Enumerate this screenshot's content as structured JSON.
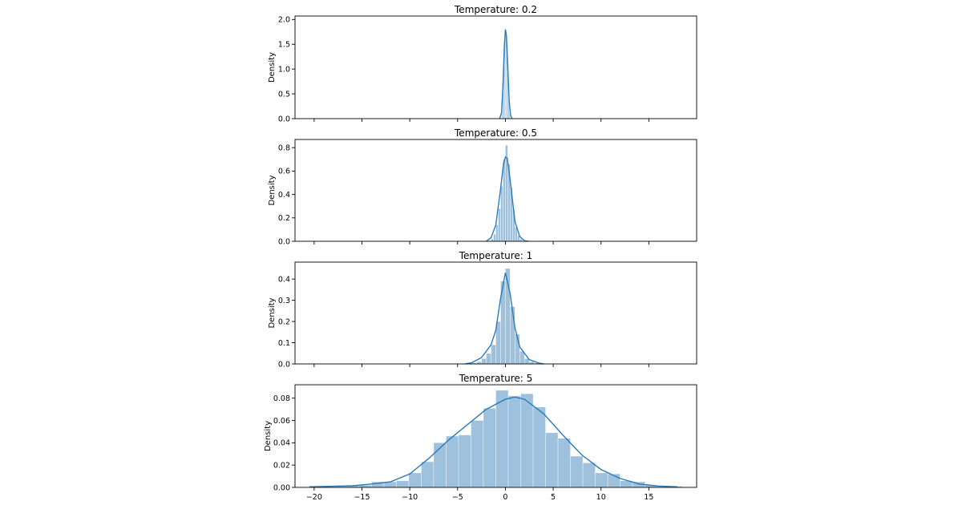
{
  "figure": {
    "color_bars": "#9ec1de",
    "color_line": "#2b7bb9"
  },
  "chart_data": [
    {
      "type": "bar",
      "overlay": "kde-line",
      "title": "Temperature: 0.2",
      "xlabel": "",
      "ylabel": "Density",
      "xlim": [
        -22,
        20
      ],
      "ylim": [
        0,
        2.07
      ],
      "yticks": [
        0.0,
        0.5,
        1.0,
        1.5,
        2.0
      ],
      "ytick_labels": [
        "0.0",
        "0.5",
        "1.0",
        "1.5",
        "2.0"
      ],
      "xticks": [
        -20,
        -15,
        -10,
        -5,
        0,
        5,
        10,
        15
      ],
      "show_xtick_labels": false,
      "grid": false,
      "bins": [
        [
          -0.4,
          -0.3,
          0.15
        ],
        [
          -0.3,
          -0.2,
          0.5
        ],
        [
          -0.2,
          -0.1,
          1.05
        ],
        [
          -0.1,
          0.0,
          1.6
        ],
        [
          0.0,
          0.1,
          1.75
        ],
        [
          0.1,
          0.2,
          1.45
        ],
        [
          0.2,
          0.3,
          0.9
        ],
        [
          0.3,
          0.4,
          0.4
        ],
        [
          0.4,
          0.5,
          0.12
        ]
      ],
      "kde": [
        [
          -0.6,
          0.0
        ],
        [
          -0.4,
          0.12
        ],
        [
          -0.25,
          0.7
        ],
        [
          -0.1,
          1.5
        ],
        [
          0.0,
          1.8
        ],
        [
          0.1,
          1.7
        ],
        [
          0.25,
          1.05
        ],
        [
          0.4,
          0.35
        ],
        [
          0.55,
          0.06
        ],
        [
          0.7,
          0.0
        ]
      ]
    },
    {
      "type": "bar",
      "overlay": "kde-line",
      "title": "Temperature: 0.5",
      "xlabel": "",
      "ylabel": "Density",
      "xlim": [
        -22,
        20
      ],
      "ylim": [
        0,
        0.87
      ],
      "yticks": [
        0.0,
        0.2,
        0.4,
        0.6,
        0.8
      ],
      "ytick_labels": [
        "0.0",
        "0.2",
        "0.4",
        "0.6",
        "0.8"
      ],
      "xticks": [
        -20,
        -15,
        -10,
        -5,
        0,
        5,
        10,
        15
      ],
      "show_xtick_labels": false,
      "grid": false,
      "bins": [
        [
          -1.5,
          -1.25,
          0.02
        ],
        [
          -1.25,
          -1.0,
          0.06
        ],
        [
          -1.0,
          -0.75,
          0.14
        ],
        [
          -0.75,
          -0.5,
          0.28
        ],
        [
          -0.5,
          -0.25,
          0.47
        ],
        [
          -0.25,
          0.0,
          0.7
        ],
        [
          0.0,
          0.25,
          0.82
        ],
        [
          0.25,
          0.5,
          0.66
        ],
        [
          0.5,
          0.75,
          0.46
        ],
        [
          0.75,
          1.0,
          0.27
        ],
        [
          1.0,
          1.25,
          0.12
        ],
        [
          1.25,
          1.5,
          0.05
        ],
        [
          1.5,
          1.75,
          0.02
        ]
      ],
      "kde": [
        [
          -2.0,
          0.0
        ],
        [
          -1.5,
          0.03
        ],
        [
          -1.0,
          0.14
        ],
        [
          -0.5,
          0.45
        ],
        [
          -0.2,
          0.66
        ],
        [
          0.0,
          0.72
        ],
        [
          0.2,
          0.71
        ],
        [
          0.5,
          0.52
        ],
        [
          1.0,
          0.17
        ],
        [
          1.5,
          0.04
        ],
        [
          2.0,
          0.005
        ],
        [
          2.4,
          0.0
        ]
      ]
    },
    {
      "type": "bar",
      "overlay": "kde-line",
      "title": "Temperature: 1",
      "xlabel": "",
      "ylabel": "Density",
      "xlim": [
        -22,
        20
      ],
      "ylim": [
        0,
        0.48
      ],
      "yticks": [
        0.0,
        0.1,
        0.2,
        0.3,
        0.4
      ],
      "ytick_labels": [
        "0.0",
        "0.1",
        "0.2",
        "0.3",
        "0.4"
      ],
      "xticks": [
        -20,
        -15,
        -10,
        -5,
        0,
        5,
        10,
        15
      ],
      "show_xtick_labels": false,
      "grid": false,
      "bins": [
        [
          -3.5,
          -3.0,
          0.005
        ],
        [
          -3.0,
          -2.5,
          0.01
        ],
        [
          -2.5,
          -2.0,
          0.025
        ],
        [
          -2.0,
          -1.5,
          0.05
        ],
        [
          -1.5,
          -1.0,
          0.09
        ],
        [
          -1.0,
          -0.5,
          0.2
        ],
        [
          -0.5,
          0.0,
          0.39
        ],
        [
          0.0,
          0.5,
          0.45
        ],
        [
          0.5,
          1.0,
          0.27
        ],
        [
          1.0,
          1.5,
          0.14
        ],
        [
          1.5,
          2.0,
          0.06
        ],
        [
          2.0,
          2.5,
          0.025
        ],
        [
          2.5,
          3.0,
          0.01
        ],
        [
          3.0,
          3.5,
          0.004
        ]
      ],
      "kde": [
        [
          -4.2,
          0.0
        ],
        [
          -3.5,
          0.006
        ],
        [
          -2.5,
          0.03
        ],
        [
          -1.5,
          0.09
        ],
        [
          -1.0,
          0.16
        ],
        [
          -0.5,
          0.31
        ],
        [
          0.0,
          0.43
        ],
        [
          0.5,
          0.33
        ],
        [
          1.0,
          0.17
        ],
        [
          1.5,
          0.08
        ],
        [
          2.5,
          0.02
        ],
        [
          3.5,
          0.004
        ],
        [
          4.0,
          0.0
        ]
      ]
    },
    {
      "type": "bar",
      "overlay": "kde-line",
      "title": "Temperature: 5",
      "xlabel": "",
      "ylabel": "Density",
      "xlim": [
        -22,
        20
      ],
      "ylim": [
        0,
        0.092
      ],
      "yticks": [
        0.0,
        0.02,
        0.04,
        0.06,
        0.08
      ],
      "ytick_labels": [
        "0.00",
        "0.02",
        "0.04",
        "0.06",
        "0.08"
      ],
      "xticks": [
        -20,
        -15,
        -10,
        -5,
        0,
        5,
        10,
        15
      ],
      "xtick_labels": [
        "−20",
        "−15",
        "−10",
        "−5",
        "0",
        "5",
        "10",
        "15"
      ],
      "show_xtick_labels": true,
      "grid": false,
      "bins": [
        [
          -20.5,
          -19.2,
          0.001
        ],
        [
          -19.2,
          -17.9,
          0.001
        ],
        [
          -17.9,
          -16.6,
          0.001
        ],
        [
          -16.6,
          -15.3,
          0.002
        ],
        [
          -15.3,
          -14.0,
          0.002
        ],
        [
          -14.0,
          -12.7,
          0.005
        ],
        [
          -12.7,
          -11.4,
          0.005
        ],
        [
          -11.4,
          -10.1,
          0.006
        ],
        [
          -10.1,
          -8.8,
          0.013
        ],
        [
          -8.8,
          -7.5,
          0.023
        ],
        [
          -7.5,
          -6.2,
          0.04
        ],
        [
          -6.2,
          -4.9,
          0.046
        ],
        [
          -4.9,
          -3.6,
          0.047
        ],
        [
          -3.6,
          -2.3,
          0.06
        ],
        [
          -2.3,
          -1.0,
          0.071
        ],
        [
          -1.0,
          0.3,
          0.087
        ],
        [
          0.3,
          1.6,
          0.082
        ],
        [
          1.6,
          2.9,
          0.084
        ],
        [
          2.9,
          4.2,
          0.072
        ],
        [
          4.2,
          5.5,
          0.049
        ],
        [
          5.5,
          6.8,
          0.044
        ],
        [
          6.8,
          8.1,
          0.028
        ],
        [
          8.1,
          9.4,
          0.022
        ],
        [
          9.4,
          10.7,
          0.013
        ],
        [
          10.7,
          12.0,
          0.012
        ],
        [
          12.0,
          13.3,
          0.006
        ],
        [
          13.3,
          14.6,
          0.005
        ],
        [
          14.6,
          15.9,
          0.002
        ],
        [
          15.9,
          17.2,
          0.001
        ],
        [
          17.2,
          18.5,
          0.001
        ]
      ],
      "kde": [
        [
          -20.5,
          0.0005
        ],
        [
          -18,
          0.001
        ],
        [
          -16,
          0.0015
        ],
        [
          -14,
          0.003
        ],
        [
          -12,
          0.005
        ],
        [
          -10,
          0.012
        ],
        [
          -8,
          0.026
        ],
        [
          -6,
          0.042
        ],
        [
          -4,
          0.056
        ],
        [
          -2,
          0.07
        ],
        [
          0,
          0.079
        ],
        [
          1,
          0.081
        ],
        [
          2,
          0.079
        ],
        [
          4,
          0.066
        ],
        [
          6,
          0.047
        ],
        [
          8,
          0.029
        ],
        [
          10,
          0.016
        ],
        [
          12,
          0.008
        ],
        [
          14,
          0.003
        ],
        [
          16,
          0.0012
        ],
        [
          18,
          0.0005
        ]
      ]
    }
  ]
}
